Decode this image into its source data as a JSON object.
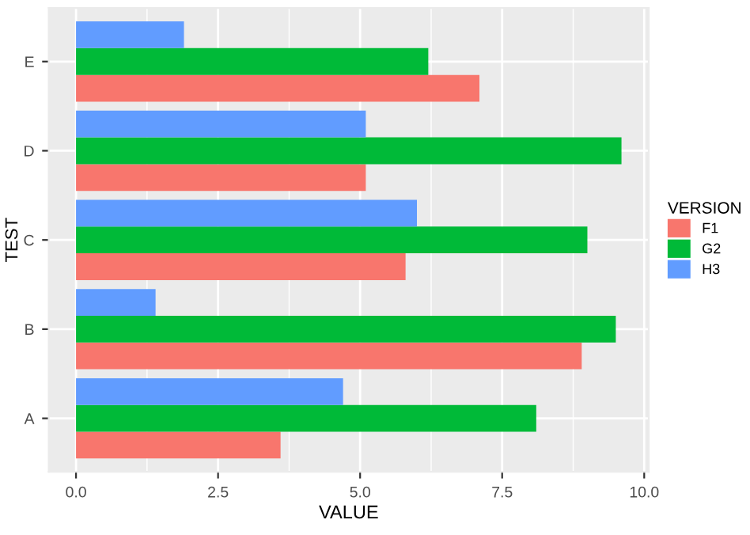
{
  "chart_data": {
    "type": "bar",
    "orientation": "horizontal",
    "xlabel": "VALUE",
    "ylabel": "TEST",
    "legend_title": "VERSION",
    "legend": "right",
    "grid": true,
    "categories": [
      "E",
      "D",
      "C",
      "B",
      "A"
    ],
    "series": [
      {
        "name": "F1",
        "color": "#f8766d",
        "values": [
          7.1,
          5.1,
          5.8,
          8.9,
          3.6
        ]
      },
      {
        "name": "G2",
        "color": "#00ba38",
        "values": [
          6.2,
          9.6,
          9.0,
          9.5,
          8.1
        ]
      },
      {
        "name": "H3",
        "color": "#619cff",
        "values": [
          1.9,
          5.1,
          6.0,
          1.4,
          4.7
        ]
      }
    ],
    "xlim": [
      -0.48,
      10.08
    ],
    "xticks": [
      {
        "value": 0,
        "label": "0.0"
      },
      {
        "value": 2.5,
        "label": "2.5"
      },
      {
        "value": 5,
        "label": "5.0"
      },
      {
        "value": 7.5,
        "label": "7.5"
      },
      {
        "value": 10,
        "label": "10.0"
      }
    ]
  }
}
